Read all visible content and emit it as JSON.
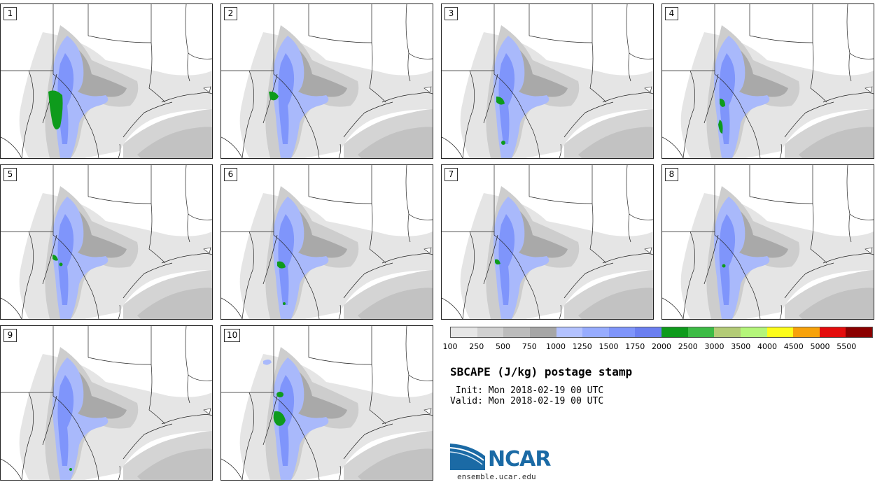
{
  "panels": [
    {
      "label": "1"
    },
    {
      "label": "2"
    },
    {
      "label": "3"
    },
    {
      "label": "4"
    },
    {
      "label": "5"
    },
    {
      "label": "6"
    },
    {
      "label": "7"
    },
    {
      "label": "8"
    },
    {
      "label": "9"
    },
    {
      "label": "10"
    }
  ],
  "colorbar": {
    "colors": [
      "#e6e6e6",
      "#d1d1d1",
      "#bcbcbc",
      "#a6a6a6",
      "#b3c2ff",
      "#97acff",
      "#7f95fb",
      "#6b7ff1",
      "#0e9b1c",
      "#3dbb45",
      "#b3cb76",
      "#b4f57a",
      "#fdfd1a",
      "#f7a20b",
      "#e40c0c",
      "#8b0000"
    ],
    "ticks": [
      "100",
      "250",
      "500",
      "750",
      "1000",
      "1250",
      "1500",
      "1750",
      "2000",
      "2500",
      "3000",
      "3500",
      "4000",
      "4500",
      "5000",
      "5500"
    ]
  },
  "title": "SBCAPE (J/kg) postage stamp",
  "init": " Init: Mon 2018-02-19 00 UTC",
  "valid": "Valid: Mon 2018-02-19 00 UTC",
  "logo": {
    "text": "NCAR",
    "color": "#1b6aa5"
  },
  "site": "ensemble.ucar.edu"
}
